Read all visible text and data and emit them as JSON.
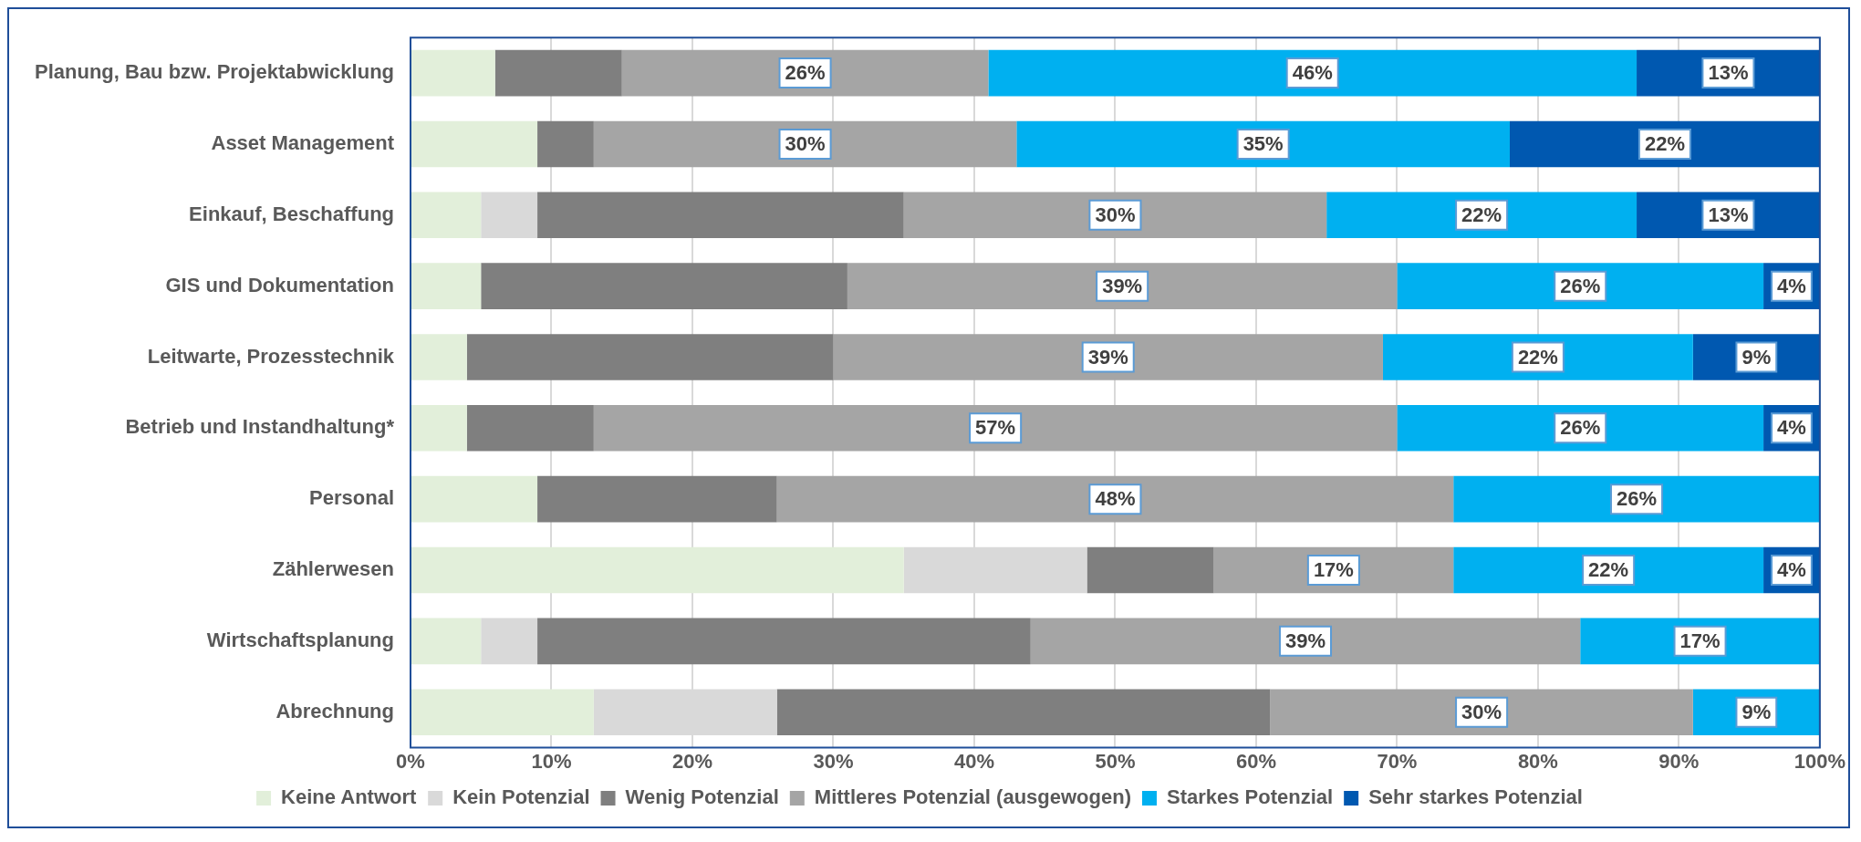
{
  "chart_data": {
    "type": "bar",
    "orientation": "horizontal",
    "stacked": true,
    "legend": "bottom",
    "grid": "x",
    "categories": [
      "Planung, Bau bzw. Projektabwicklung",
      "Asset Management",
      "Einkauf, Beschaffung",
      "GIS und Dokumentation",
      "Leitwarte, Prozesstechnik",
      "Betrieb und Instandhaltung*",
      "Personal",
      "Zählerwesen",
      "Wirtschaftsplanung",
      "Abrechnung"
    ],
    "xlim": [
      0,
      100
    ],
    "xticks": [
      {
        "value": 0,
        "label": "0%"
      },
      {
        "value": 10,
        "label": "10%"
      },
      {
        "value": 20,
        "label": "20%"
      },
      {
        "value": 30,
        "label": "30%"
      },
      {
        "value": 40,
        "label": "40%"
      },
      {
        "value": 50,
        "label": "50%"
      },
      {
        "value": 60,
        "label": "60%"
      },
      {
        "value": 70,
        "label": "70%"
      },
      {
        "value": 80,
        "label": "80%"
      },
      {
        "value": 90,
        "label": "90%"
      },
      {
        "value": 100,
        "label": "100%"
      }
    ],
    "series": [
      {
        "name": "Keine Antwort",
        "color": "#e2efda",
        "values": [
          6,
          9,
          5,
          5,
          4,
          4,
          9,
          35,
          5,
          13
        ]
      },
      {
        "name": "Kein Potenzial",
        "color": "#d9d9d9",
        "values": [
          0,
          0,
          4,
          0,
          0,
          0,
          0,
          13,
          4,
          13
        ]
      },
      {
        "name": "Wenig Potenzial",
        "color": "#7f7f7f",
        "values": [
          9,
          4,
          26,
          26,
          26,
          9,
          17,
          9,
          35,
          35
        ]
      },
      {
        "name": "Mittleres Potenzial (ausgewogen)",
        "color": "#a5a5a5",
        "values": [
          26,
          30,
          30,
          39,
          39,
          57,
          48,
          17,
          39,
          30
        ],
        "value_labels": [
          "26%",
          "30%",
          "30%",
          "39%",
          "39%",
          "57%",
          "48%",
          "17%",
          "39%",
          "30%"
        ]
      },
      {
        "name": "Starkes Potenzial",
        "color": "#00b0f0",
        "values": [
          46,
          35,
          22,
          26,
          22,
          26,
          26,
          22,
          17,
          9
        ],
        "value_labels": [
          "46%",
          "35%",
          "22%",
          "26%",
          "22%",
          "26%",
          "26%",
          "22%",
          "17%",
          "9%"
        ]
      },
      {
        "name": "Sehr starkes Potenzial",
        "color": "#0058b0",
        "values": [
          13,
          22,
          13,
          4,
          9,
          4,
          0,
          4,
          0,
          0
        ],
        "value_labels": [
          "13%",
          "22%",
          "13%",
          "4%",
          "9%",
          "4%",
          null,
          "4%",
          null,
          null
        ]
      }
    ]
  }
}
